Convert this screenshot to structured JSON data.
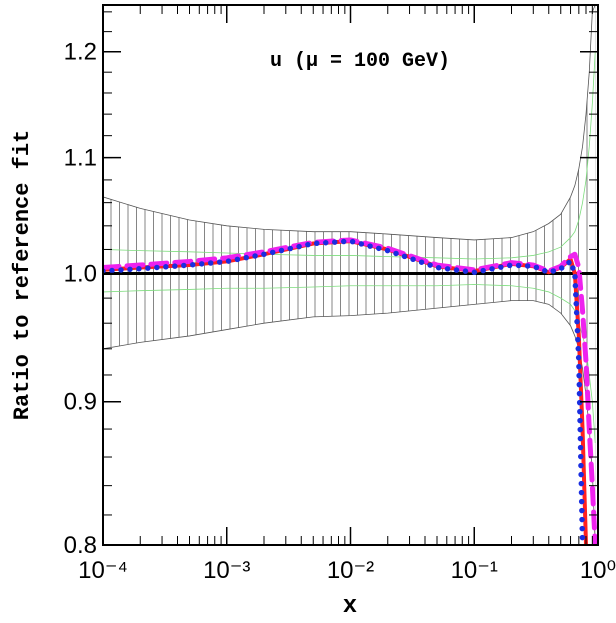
{
  "chart_data": {
    "type": "line",
    "annotation": "u (μ = 100 GeV)",
    "xlabel": "x",
    "ylabel": "Ratio to reference fit",
    "xscale": "log",
    "yscale": "log",
    "xlim": [
      0.0001,
      1
    ],
    "ylim": [
      0.8,
      1.247
    ],
    "xticks": [
      {
        "value": 0.0001,
        "label": "10⁻⁴"
      },
      {
        "value": 0.001,
        "label": "10⁻³"
      },
      {
        "value": 0.01,
        "label": "10⁻²"
      },
      {
        "value": 0.1,
        "label": "10⁻¹"
      },
      {
        "value": 1,
        "label": "10⁰"
      }
    ],
    "yticks": [
      0.8,
      0.9,
      {
        "value": 1,
        "label": "1.0"
      },
      1.1,
      1.2
    ],
    "reference_line": 1,
    "x": [
      0.0001,
      0.0002,
      0.0005,
      0.001,
      0.002,
      0.005,
      0.01,
      0.02,
      0.05,
      0.1,
      0.2,
      0.3,
      0.4,
      0.5,
      0.6,
      0.65,
      0.7,
      0.75,
      0.8,
      0.85,
      0.9,
      0.95
    ],
    "bands": [
      {
        "color": "#555555",
        "hatch": true,
        "upper": [
          1.065,
          1.055,
          1.045,
          1.04,
          1.037,
          1.035,
          1.035,
          1.033,
          1.03,
          1.028,
          1.03,
          1.035,
          1.042,
          1.05,
          1.065,
          1.075,
          1.09,
          1.11,
          1.14,
          1.18,
          1.24,
          1.247
        ],
        "lower": [
          0.94,
          0.945,
          0.95,
          0.955,
          0.96,
          0.965,
          0.966,
          0.968,
          0.972,
          0.975,
          0.978,
          0.978,
          0.975,
          0.968,
          0.958,
          0.95,
          0.94,
          0.925,
          0.905,
          0.88,
          0.85,
          0.8
        ]
      },
      {
        "color": "#7ddc7d",
        "hatch": false,
        "upper": [
          1.02,
          1.019,
          1.018,
          1.017,
          1.016,
          1.015,
          1.015,
          1.014,
          1.013,
          1.012,
          1.013,
          1.015,
          1.018,
          1.022,
          1.03,
          1.035,
          1.045,
          1.06,
          1.08,
          1.11,
          1.15,
          1.2
        ],
        "lower": [
          0.985,
          0.986,
          0.987,
          0.988,
          0.988,
          0.989,
          0.99,
          0.99,
          0.99,
          0.991,
          0.99,
          0.988,
          0.985,
          0.98,
          0.975,
          0.97,
          0.96,
          0.95,
          0.94,
          0.92,
          0.9,
          0.87
        ]
      }
    ],
    "series": [
      {
        "color": "#ff2020",
        "style": "solid",
        "values": [
          1.003,
          1.005,
          1.007,
          1.01,
          1.016,
          1.025,
          1.027,
          1.02,
          1.006,
          1.002,
          1.008,
          1.006,
          1.001,
          1.005,
          1.012,
          1.0,
          0.95,
          0.88,
          0.8,
          null,
          null,
          null
        ]
      },
      {
        "color": "#ee22ee",
        "style": "dashed",
        "values": [
          1.005,
          1.007,
          1.01,
          1.013,
          1.018,
          1.026,
          1.028,
          1.021,
          1.007,
          1.003,
          1.009,
          1.007,
          1.002,
          1.006,
          1.014,
          1.016,
          1.005,
          0.97,
          0.93,
          0.88,
          0.84,
          0.8
        ]
      },
      {
        "color": "#1a2ee0",
        "style": "dotted",
        "values": [
          1.002,
          1.004,
          1.007,
          1.01,
          1.016,
          1.025,
          1.027,
          1.019,
          1.005,
          1.001,
          1.007,
          1.006,
          1.001,
          1.004,
          1.01,
          1.0,
          0.93,
          0.8,
          null,
          null,
          null,
          null
        ]
      }
    ]
  }
}
